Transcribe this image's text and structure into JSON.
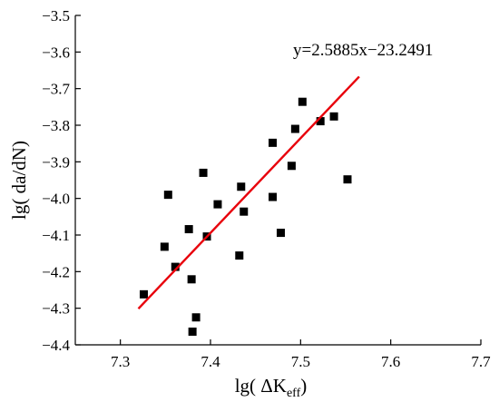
{
  "chart_data": {
    "type": "scatter",
    "xlabel": "lg( ΔK",
    "xlabel_sub": "eff",
    "xlabel_close": ")",
    "ylabel": "lg( da/dN)",
    "xlim": [
      7.25,
      7.7
    ],
    "ylim": [
      -4.4,
      -3.5
    ],
    "xticks": [
      7.3,
      7.4,
      7.5,
      7.6,
      7.7
    ],
    "xtick_labels": [
      "7.3",
      "7.4",
      "7.5",
      "7.6",
      "7.7"
    ],
    "yticks": [
      -3.5,
      -3.6,
      -3.7,
      -3.8,
      -3.9,
      -4.0,
      -4.1,
      -4.2,
      -4.3,
      -4.4
    ],
    "ytick_labels": [
      "−3.5",
      "−3.6",
      "−3.7",
      "−3.8",
      "−3.9",
      "−4.0",
      "−4.1",
      "−4.2",
      "−4.3",
      "−4.4"
    ],
    "grid": false,
    "marker_color": "#000000",
    "points": [
      {
        "x": 7.326,
        "y": -4.262
      },
      {
        "x": 7.349,
        "y": -4.132
      },
      {
        "x": 7.353,
        "y": -3.99
      },
      {
        "x": 7.361,
        "y": -4.187
      },
      {
        "x": 7.376,
        "y": -4.084
      },
      {
        "x": 7.379,
        "y": -4.221
      },
      {
        "x": 7.38,
        "y": -4.364
      },
      {
        "x": 7.384,
        "y": -4.325
      },
      {
        "x": 7.392,
        "y": -3.93
      },
      {
        "x": 7.396,
        "y": -4.104
      },
      {
        "x": 7.408,
        "y": -4.016
      },
      {
        "x": 7.432,
        "y": -4.156
      },
      {
        "x": 7.434,
        "y": -3.968
      },
      {
        "x": 7.437,
        "y": -4.036
      },
      {
        "x": 7.469,
        "y": -3.848
      },
      {
        "x": 7.469,
        "y": -3.996
      },
      {
        "x": 7.478,
        "y": -4.094
      },
      {
        "x": 7.49,
        "y": -3.911
      },
      {
        "x": 7.494,
        "y": -3.81
      },
      {
        "x": 7.502,
        "y": -3.736
      },
      {
        "x": 7.522,
        "y": -3.789
      },
      {
        "x": 7.537,
        "y": -3.776
      },
      {
        "x": 7.552,
        "y": -3.948
      }
    ],
    "fit_line": {
      "label": "y=2.5885x−23.2491",
      "slope": 2.5885,
      "intercept": -23.2491,
      "x_range": [
        7.32,
        7.565
      ],
      "color": "#e8000b"
    }
  }
}
